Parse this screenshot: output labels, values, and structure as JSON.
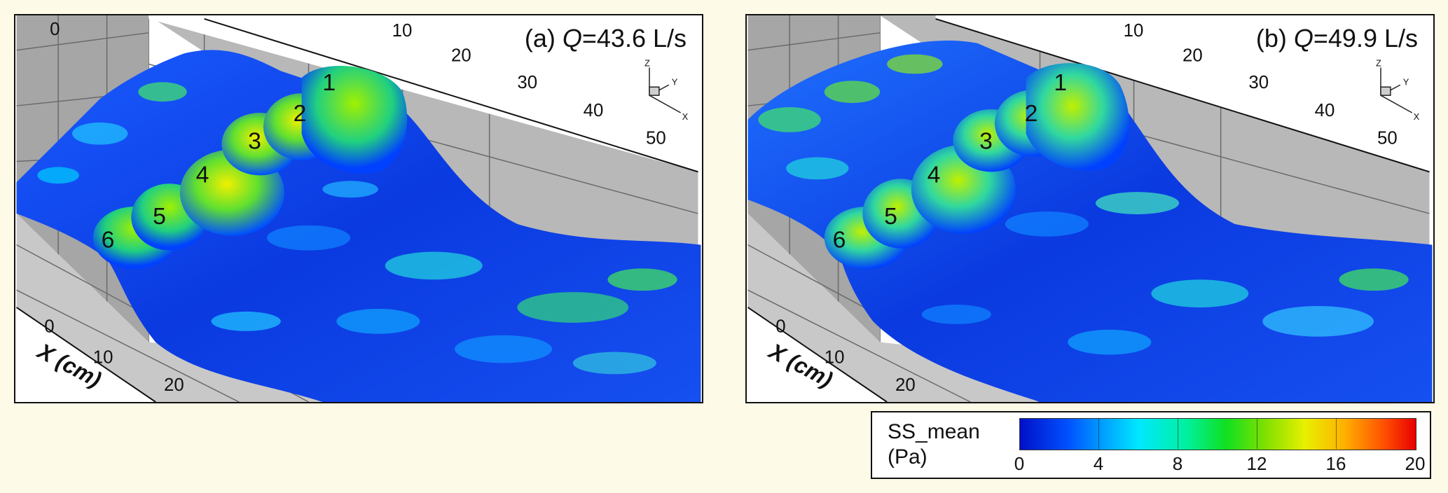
{
  "panels": [
    {
      "title_prefix": "(a) ",
      "title_q": "Q",
      "title_value": "=43.6 L/s",
      "y_ticks": [
        "0",
        "10",
        "20",
        "30",
        "40",
        "50"
      ],
      "x_ticks": [
        "0",
        "10",
        "20"
      ],
      "x_axis_label": "X (cm)",
      "triad": {
        "z": "Z",
        "y": "Y",
        "x": "X"
      },
      "grain_labels": [
        "1",
        "2",
        "3",
        "4",
        "5",
        "6"
      ]
    },
    {
      "title_prefix": "(b) ",
      "title_q": "Q",
      "title_value": "=49.9 L/s",
      "y_ticks": [
        "10",
        "20",
        "30",
        "40",
        "50"
      ],
      "x_ticks": [
        "0",
        "10",
        "20"
      ],
      "x_axis_label": "X (cm)",
      "triad": {
        "z": "Z",
        "y": "Y",
        "x": "X"
      },
      "grain_labels": [
        "1",
        "2",
        "3",
        "4",
        "5",
        "6"
      ]
    }
  ],
  "legend": {
    "title_line1": "SS_mean",
    "title_line2": "(Pa)",
    "ticks": [
      "0",
      "4",
      "8",
      "12",
      "16",
      "20"
    ],
    "min": 0,
    "max": 20
  },
  "colors": {
    "background": "#fdfbe7",
    "wall": "#b4b4b4",
    "floor": "#c8c8c8",
    "low": "#0010c8",
    "mid": "#10e020",
    "high": "#e80000"
  }
}
